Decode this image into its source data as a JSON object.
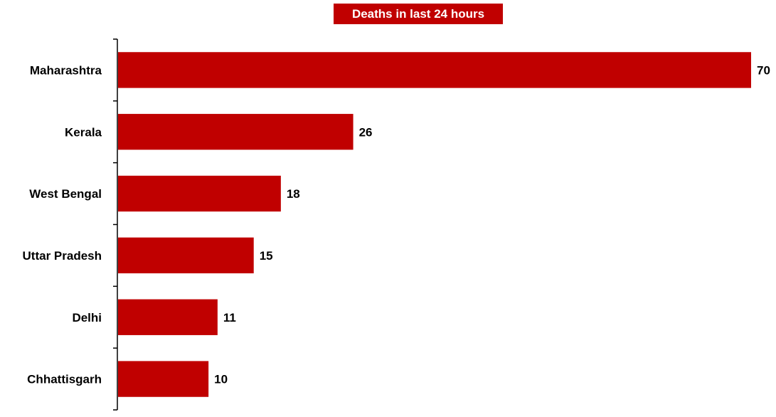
{
  "chart_data": {
    "type": "bar",
    "orientation": "horizontal",
    "title": "Deaths in last 24 hours",
    "categories": [
      "Maharashtra",
      "Kerala",
      "West Bengal",
      "Uttar Pradesh",
      "Delhi",
      "Chhattisgarh"
    ],
    "values": [
      70,
      26,
      18,
      15,
      11,
      10
    ],
    "data_labels": [
      "70",
      "26",
      "18",
      "15",
      "11",
      "10"
    ],
    "xlim": [
      0,
      70
    ],
    "xlabel": "",
    "ylabel": "",
    "grid": false,
    "legend": "none",
    "bar_color": "#c00000",
    "title_bg_color": "#c00000",
    "title_text_color": "#ffffff"
  }
}
